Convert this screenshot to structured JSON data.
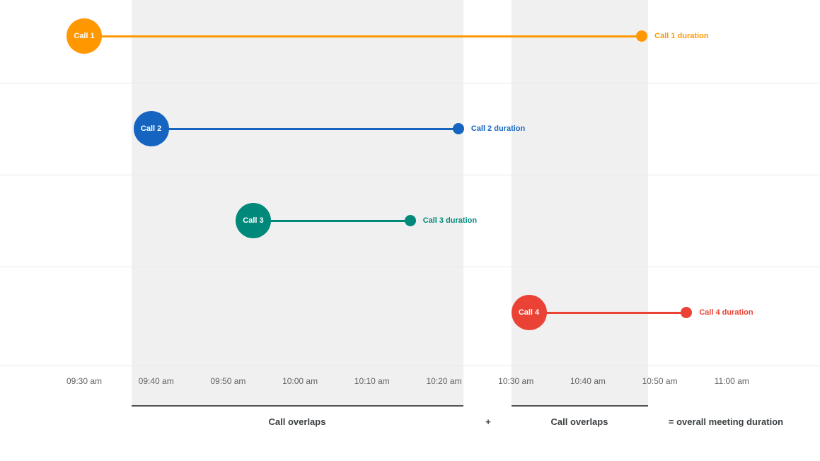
{
  "chart_data": {
    "type": "bar",
    "subtype": "horizontal-timeline-gantt",
    "title": "",
    "description_of_units": "minutes are offsets after 09:30 am, estimated from axis gridlines",
    "x_axis": {
      "ticks": [
        {
          "min": 0,
          "label": "09:30 am"
        },
        {
          "min": 10,
          "label": "09:40 am"
        },
        {
          "min": 20,
          "label": "09:50 am"
        },
        {
          "min": 30,
          "label": "10:00 am"
        },
        {
          "min": 40,
          "label": "10:10 am"
        },
        {
          "min": 50,
          "label": "10:20 am"
        },
        {
          "min": 60,
          "label": "10:30 am"
        },
        {
          "min": 70,
          "label": "10:40 am"
        },
        {
          "min": 80,
          "label": "10:50 am"
        },
        {
          "min": 90,
          "label": "11:00 am"
        }
      ]
    },
    "calls": [
      {
        "name": "Call 1",
        "start_min": 0,
        "end_min": 77.5,
        "start_time": "09:30 am",
        "end_time": "10:47 am",
        "color": "#FF9800",
        "duration_label": "Call 1 duration"
      },
      {
        "name": "Call 2",
        "start_min": 9.3,
        "end_min": 52,
        "start_time": "09:39 am",
        "end_time": "10:22 am",
        "color": "#1565C0",
        "duration_label": "Call 2 duration"
      },
      {
        "name": "Call 3",
        "start_min": 23.5,
        "end_min": 45.3,
        "start_time": "09:53 am",
        "end_time": "10:15 am",
        "color": "#00897B",
        "duration_label": "Call 3 duration"
      },
      {
        "name": "Call 4",
        "start_min": 61.8,
        "end_min": 83.7,
        "start_time": "10:32 am",
        "end_time": "10:54 am",
        "color": "#EA4335",
        "duration_label": "Call 4 duration"
      }
    ],
    "overlap_bands": [
      {
        "start_min": 6.6,
        "end_min": 52.7,
        "start_time": "09:37 am",
        "end_time": "10:23 am",
        "label": "Call overlaps"
      },
      {
        "start_min": 59.4,
        "end_min": 78.4,
        "start_time": "10:29 am",
        "end_time": "10:48 am",
        "label": "Call overlaps"
      }
    ],
    "footer": {
      "plus": "+",
      "result": "= overall meeting duration"
    },
    "colors": {
      "band": "#f0f0f0",
      "band_underline": "#515254",
      "gridline": "#e9e9e9",
      "axis_text": "#616161",
      "footer_text": "#3c4043"
    },
    "legend": "none",
    "grid": "horizontal gridlines on"
  }
}
